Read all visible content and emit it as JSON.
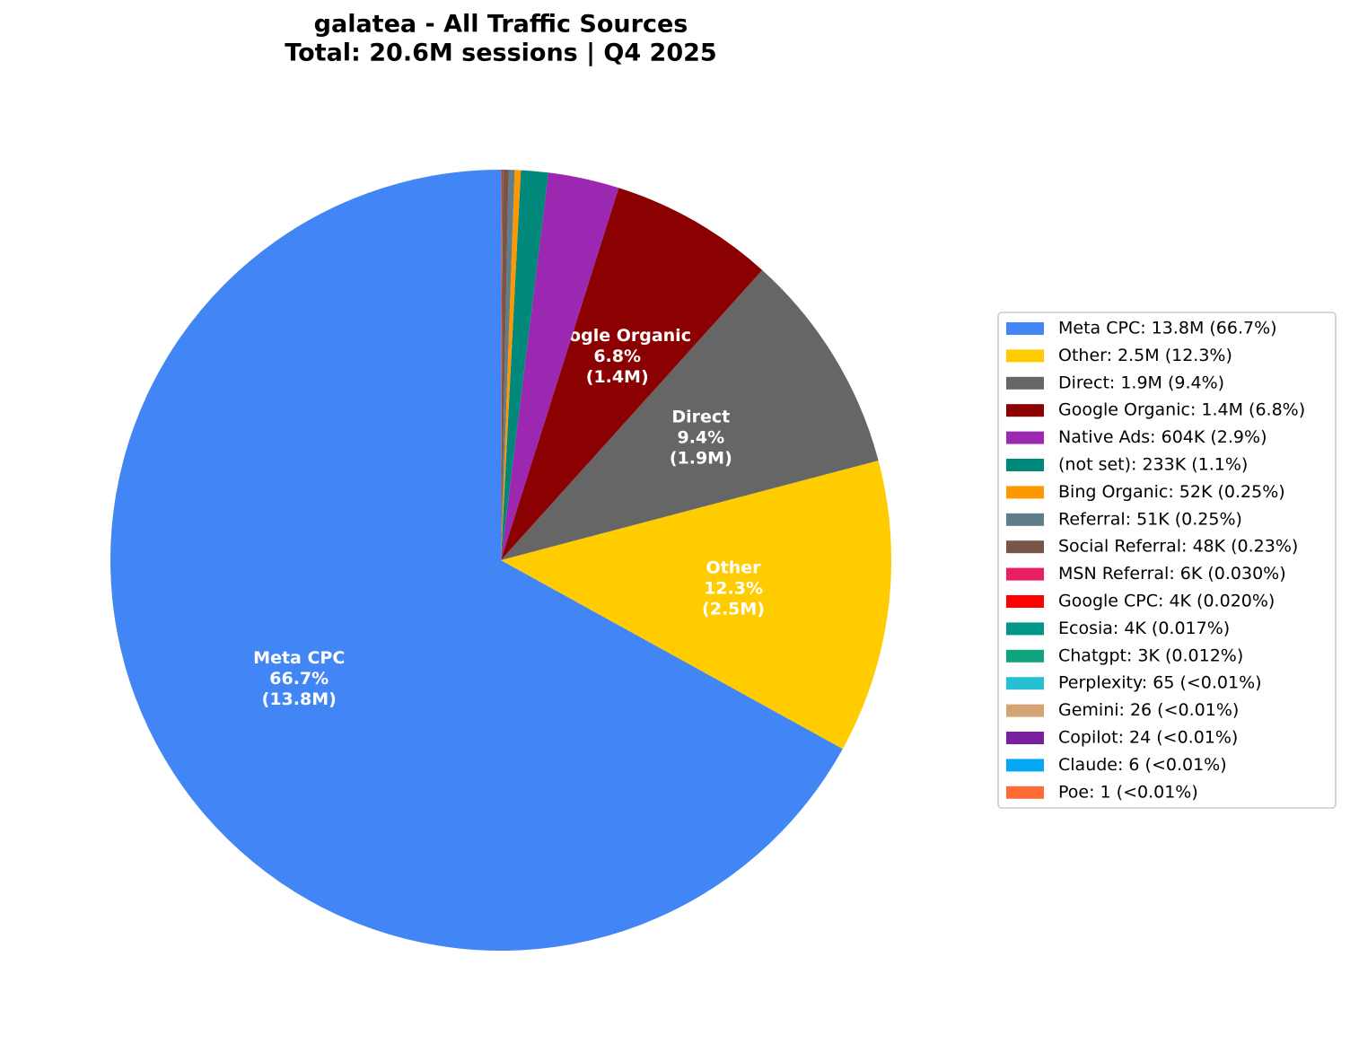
{
  "chart_data": {
    "type": "pie",
    "title": "galatea - All Traffic Sources",
    "subtitle": "Total: 20.6M sessions | Q4 2025",
    "categories": [
      "Meta CPC",
      "Other",
      "Direct",
      "Google Organic",
      "Native Ads",
      "(not set)",
      "Bing Organic",
      "Referral",
      "Social Referral",
      "MSN Referral",
      "Google CPC",
      "Ecosia",
      "Chatgpt",
      "Perplexity",
      "Gemini",
      "Copilot",
      "Claude",
      "Poe"
    ],
    "values": [
      13800000,
      2500000,
      1900000,
      1400000,
      604000,
      233000,
      52000,
      51000,
      48000,
      6000,
      4000,
      4000,
      3000,
      65,
      26,
      24,
      6,
      1
    ],
    "colors": [
      "#4285f4",
      "#ffcc00",
      "#666666",
      "#8b0000",
      "#9c27b0",
      "#00897b",
      "#ff9800",
      "#607d8b",
      "#795548",
      "#e91e63",
      "#ff0000",
      "#009688",
      "#10a37f",
      "#26c0d3",
      "#d4a373",
      "#7b1fa2",
      "#03a9f4",
      "#ff6b35"
    ],
    "legend_labels": [
      "Meta CPC: 13.8M (66.7%)",
      "Other: 2.5M (12.3%)",
      "Direct: 1.9M (9.4%)",
      "Google Organic: 1.4M (6.8%)",
      "Native Ads: 604K (2.9%)",
      "(not set): 233K (1.1%)",
      "Bing Organic: 52K (0.25%)",
      "Referral: 51K (0.25%)",
      "Social Referral: 48K (0.23%)",
      "MSN Referral: 6K (0.030%)",
      "Google CPC: 4K (0.020%)",
      "Ecosia: 4K (0.017%)",
      "Chatgpt: 3K (0.012%)",
      "Perplexity: 65 (<0.01%)",
      "Gemini: 26 (<0.01%)",
      "Copilot: 24 (<0.01%)",
      "Claude: 6 (<0.01%)",
      "Poe: 1 (<0.01%)"
    ],
    "slice_labels": [
      [
        "Meta CPC",
        "66.7%",
        "(13.8M)"
      ],
      [
        "Other",
        "12.3%",
        "(2.5M)"
      ],
      [
        "Direct",
        "9.4%",
        "(1.9M)"
      ],
      [
        "Google Organic",
        "6.8%",
        "(1.4M)"
      ],
      null,
      null,
      null,
      null,
      null,
      null,
      null,
      null,
      null,
      null,
      null,
      null,
      null,
      null
    ],
    "start_angle": 90,
    "counterclockwise": true,
    "legend": "right"
  }
}
